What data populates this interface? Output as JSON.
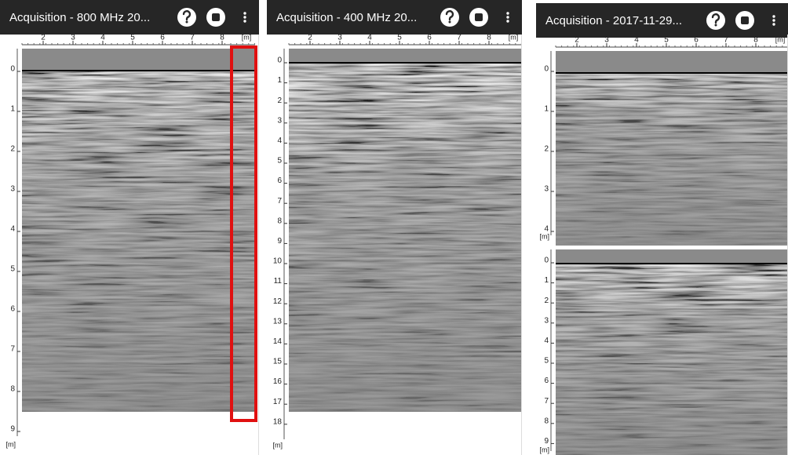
{
  "panels": [
    {
      "title": "Acquisition - 800 MHz  20...",
      "x_ticks": [
        "2",
        "3",
        "4",
        "5",
        "6",
        "7",
        "8"
      ],
      "x_unit": "[m]",
      "y_axes": [
        {
          "ticks": [
            "0",
            "1",
            "2",
            "3",
            "4",
            "5",
            "6",
            "7",
            "8",
            "9"
          ],
          "unit": "[m]"
        }
      ]
    },
    {
      "title": "Acquisition - 400 MHz  20...",
      "x_ticks": [
        "2",
        "3",
        "4",
        "5",
        "6",
        "7",
        "8"
      ],
      "x_unit": "[m]",
      "y_axes": [
        {
          "ticks": [
            "0",
            "1",
            "2",
            "3",
            "4",
            "5",
            "6",
            "7",
            "8",
            "9",
            "10",
            "11",
            "12",
            "13",
            "14",
            "15",
            "16",
            "17",
            "18"
          ],
          "unit": "[m]"
        }
      ]
    },
    {
      "title": "Acquisition -  2017-11-29...",
      "x_ticks": [
        "2",
        "3",
        "4",
        "5",
        "6",
        "7",
        "8"
      ],
      "x_unit": "[m]",
      "y_axes": [
        {
          "ticks": [
            "0",
            "1",
            "2",
            "3",
            "4"
          ],
          "unit": "[m]"
        },
        {
          "ticks": [
            "0",
            "1",
            "2",
            "3",
            "4",
            "5",
            "6",
            "7",
            "8",
            "9"
          ],
          "unit": "[m]"
        }
      ]
    }
  ]
}
